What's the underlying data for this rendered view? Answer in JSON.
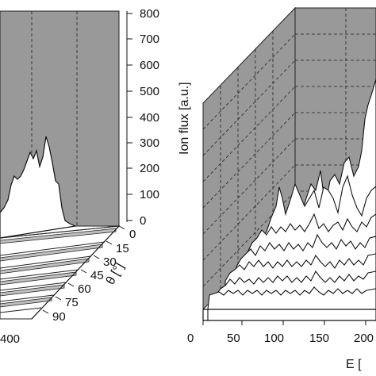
{
  "chart_data": [
    {
      "type": "area",
      "panel": "left",
      "axes": {
        "z_label": "Ion flux [a.u.]",
        "z_ticks": [
          "0",
          "100",
          "200",
          "300",
          "400",
          "500",
          "600",
          "700",
          "800"
        ],
        "z_range": [
          0,
          800
        ],
        "theta_label": "θ [°]",
        "theta_ticks": [
          "0",
          "15",
          "30",
          "45",
          "60",
          "75",
          "90"
        ],
        "x_ticks_visible": [
          "400"
        ]
      },
      "grid": true,
      "series": [
        {
          "theta": 0,
          "peak_flux": 330
        },
        {
          "theta": 15,
          "peak_flux": 10
        },
        {
          "theta": 30,
          "peak_flux": 5
        },
        {
          "theta": 45,
          "peak_flux": 5
        },
        {
          "theta": 60,
          "peak_flux": 5
        },
        {
          "theta": 75,
          "peak_flux": 5
        },
        {
          "theta": 90,
          "peak_flux": 5
        }
      ]
    },
    {
      "type": "area",
      "panel": "right",
      "axes": {
        "x_label": "E [",
        "x_ticks": [
          "0",
          "50",
          "100",
          "150",
          "200"
        ],
        "x_range": [
          0,
          220
        ]
      },
      "grid": true,
      "series": [
        {
          "row": 0,
          "peak_flux": 440
        },
        {
          "row": 1,
          "peak_flux": 250
        },
        {
          "row": 2,
          "peak_flux": 200
        },
        {
          "row": 3,
          "peak_flux": 150
        },
        {
          "row": 4,
          "peak_flux": 110
        },
        {
          "row": 5,
          "peak_flux": 80
        },
        {
          "row": 6,
          "peak_flux": 40
        }
      ]
    }
  ]
}
